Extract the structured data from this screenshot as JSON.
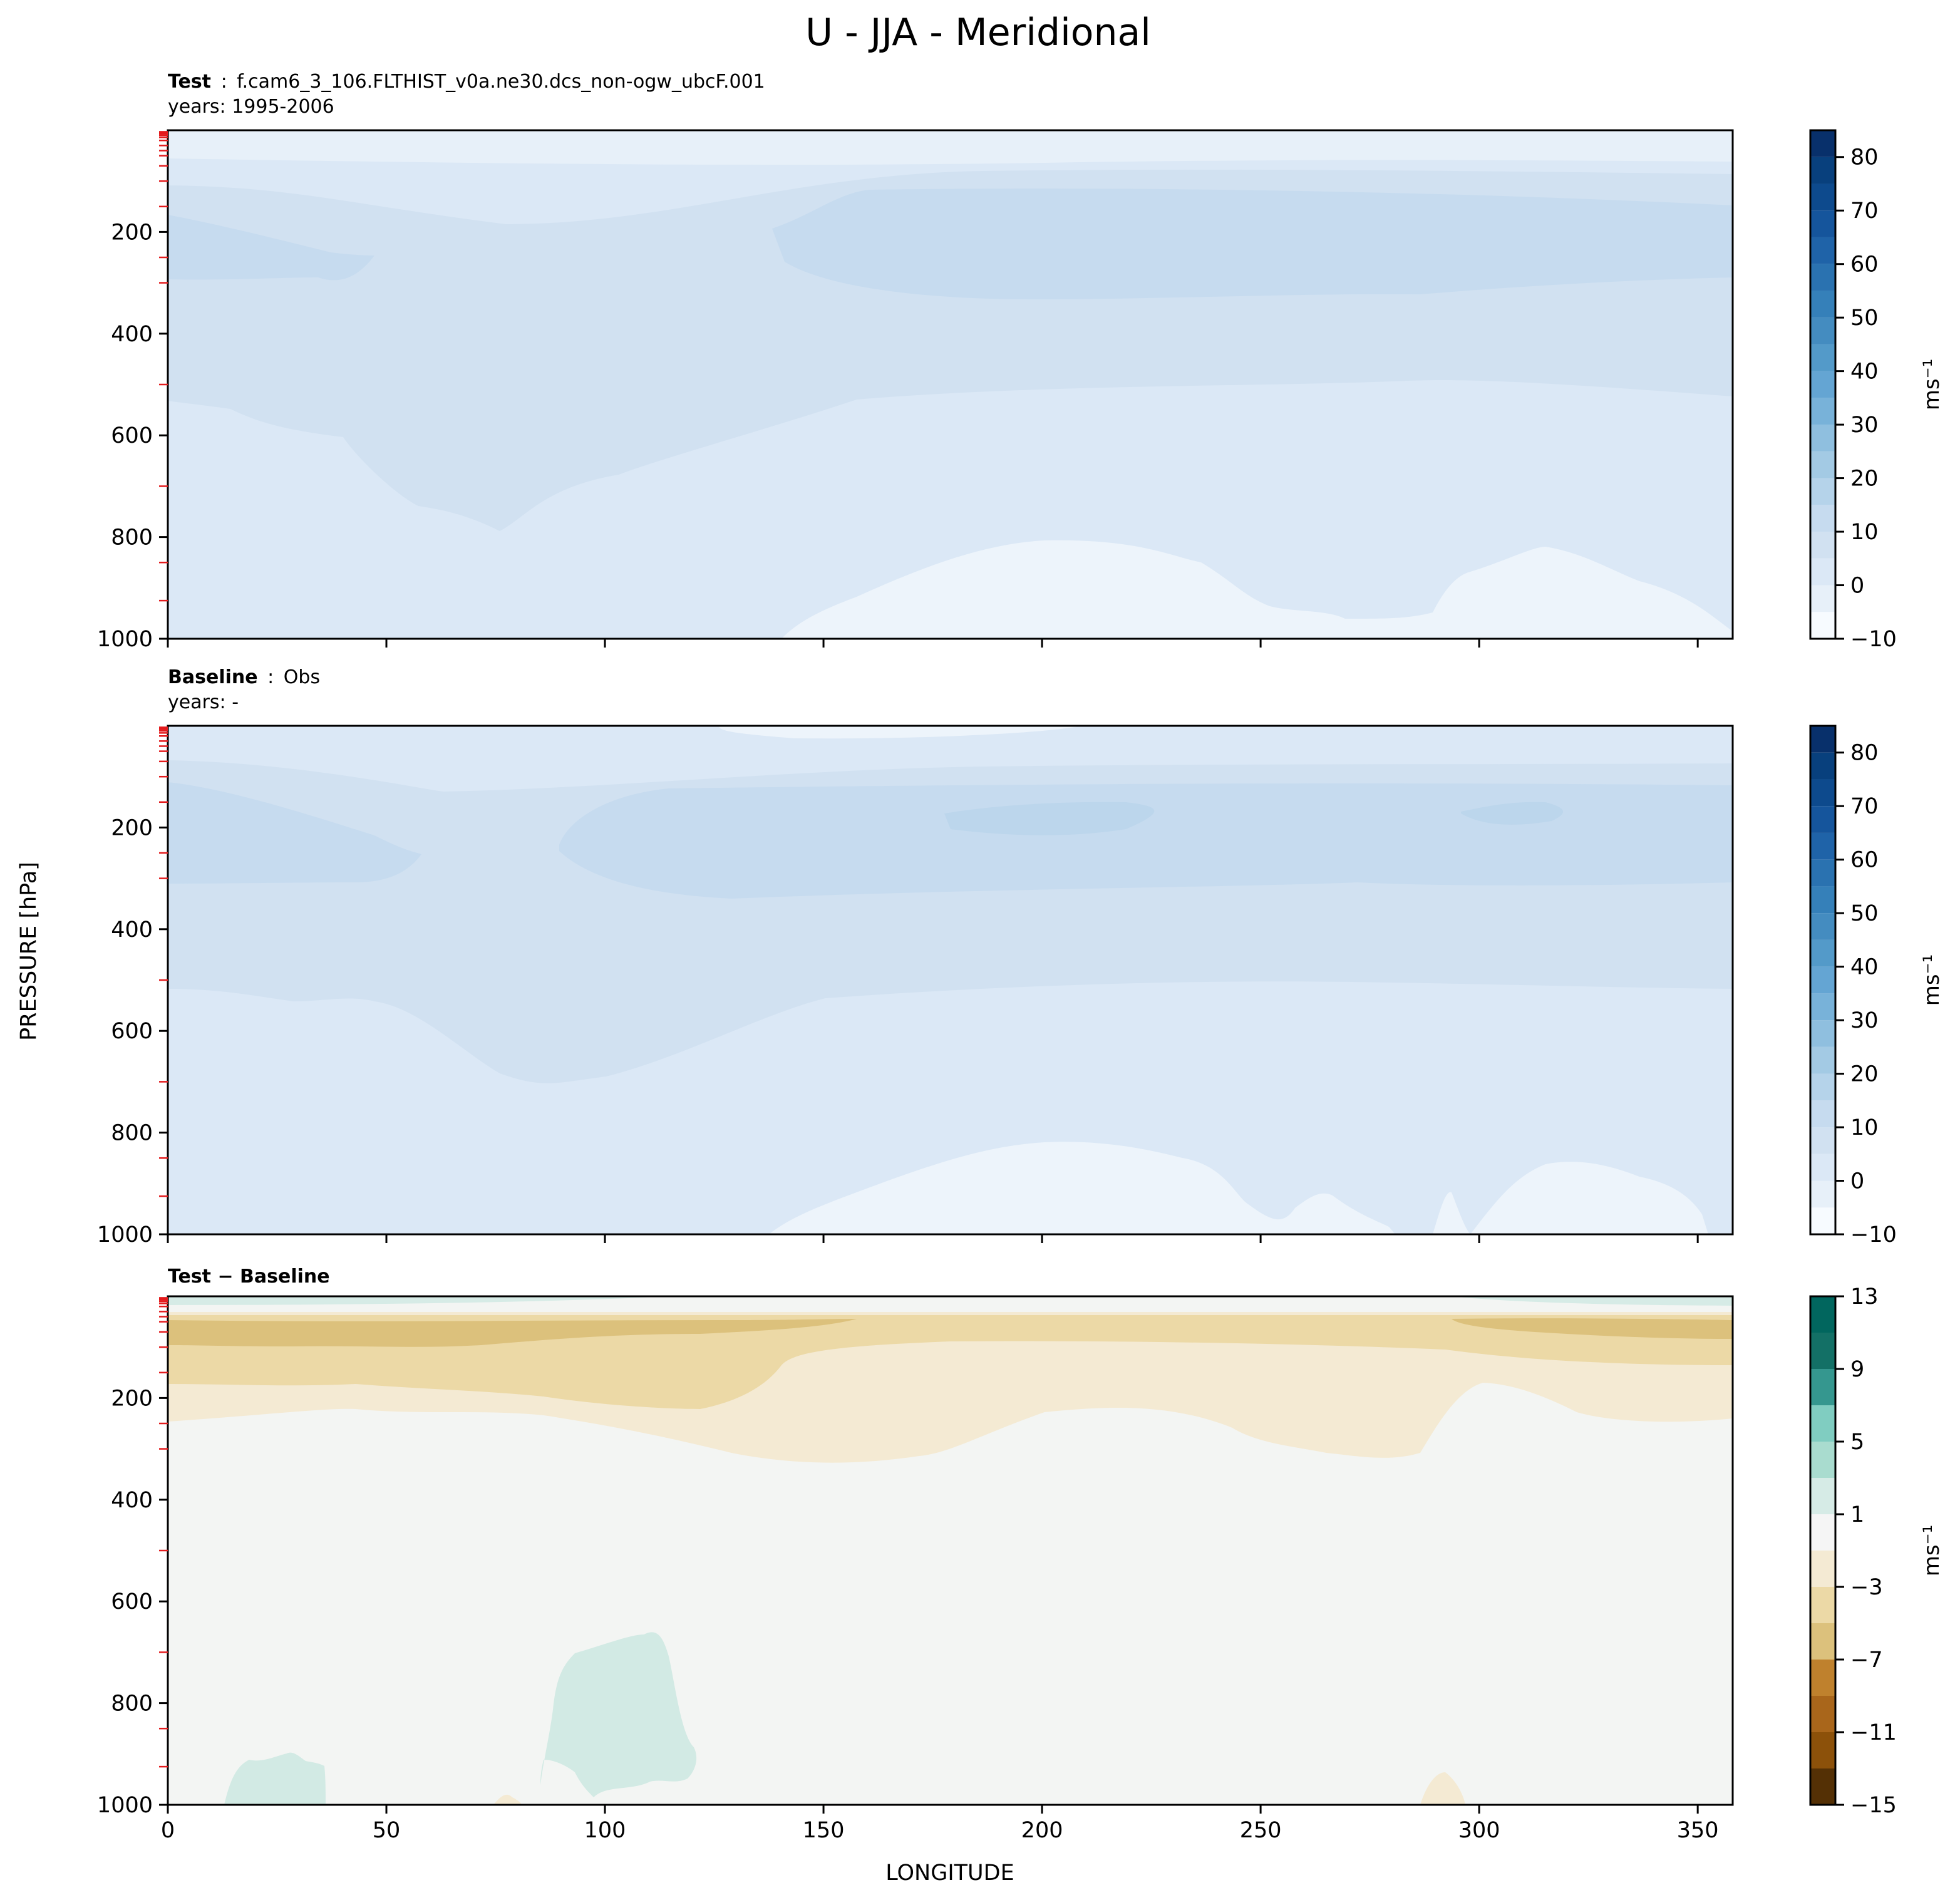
{
  "figure_title": "U - JJA - Meridional",
  "shared_ylabel": "PRESSURE [hPa]",
  "shared_xlabel": "LONGITUDE",
  "chart_data": [
    {
      "type": "filled-contour",
      "panel": "test",
      "title_bold": "Test",
      "title_sep": ":",
      "title_case": "f.cam6_3_106.FLTHIST_v0a.ne30.dcs_non-ogw_ubcF.001",
      "subtitle": "years: 1995-2006",
      "xlim": [
        0,
        358
      ],
      "ylim": [
        1000,
        1
      ],
      "x_ticks": [
        0,
        50,
        100,
        150,
        200,
        250,
        300,
        350
      ],
      "y_ticks": [
        200,
        400,
        600,
        800,
        1000
      ],
      "colorbar": {
        "label": "ms⁻¹",
        "ticks": [
          "−10",
          "0",
          "10",
          "20",
          "30",
          "40",
          "50",
          "60",
          "70",
          "80"
        ],
        "levels": [
          -10,
          -5,
          0,
          5,
          10,
          15,
          20,
          25,
          30,
          35,
          40,
          45,
          50,
          55,
          60,
          65,
          70,
          75,
          80,
          85
        ],
        "colormap": "Blues"
      },
      "regions": [
        {
          "range": "0 to 5",
          "where": "near surface 130-358E, 800-1000 hPa"
        },
        {
          "range": "5 to 10",
          "where": "lower and middle troposphere"
        },
        {
          "range": "10 to 15",
          "where": "upper troposphere 100-550 hPa"
        },
        {
          "range": "15 to 20",
          "where": "jet core ~200-300 hPa, 0-45E and 140-358E"
        }
      ]
    },
    {
      "type": "filled-contour",
      "panel": "baseline",
      "title_bold": "Baseline",
      "title_sep": ":",
      "title_case": "Obs",
      "subtitle": "years: -",
      "xlim": [
        0,
        358
      ],
      "ylim": [
        1000,
        1
      ],
      "x_ticks": [
        0,
        50,
        100,
        150,
        200,
        250,
        300,
        350
      ],
      "y_ticks": [
        200,
        400,
        600,
        800,
        1000
      ],
      "colorbar": {
        "label": "ms⁻¹",
        "ticks": [
          "−10",
          "0",
          "10",
          "20",
          "30",
          "40",
          "50",
          "60",
          "70",
          "80"
        ],
        "levels": [
          -10,
          -5,
          0,
          5,
          10,
          15,
          20,
          25,
          30,
          35,
          40,
          45,
          50,
          55,
          60,
          65,
          70,
          75,
          80,
          85
        ],
        "colormap": "Blues"
      },
      "regions": [
        {
          "range": "0 to 5",
          "where": "near surface 140-340E"
        },
        {
          "range": "5 to 10",
          "where": "lower and middle troposphere"
        },
        {
          "range": "10 to 15",
          "where": "upper troposphere 100-500 hPa"
        },
        {
          "range": "15 to 20",
          "where": "jet core ~150-300 hPa"
        },
        {
          "range": "20 to 25",
          "where": "small maxima near 200E and 310E at ~200 hPa"
        }
      ]
    },
    {
      "type": "filled-contour",
      "panel": "difference",
      "title_bold": "Test − Baseline",
      "xlim": [
        0,
        358
      ],
      "ylim": [
        1000,
        1
      ],
      "x_ticks": [
        0,
        50,
        100,
        150,
        200,
        250,
        300,
        350
      ],
      "y_ticks": [
        200,
        400,
        600,
        800,
        1000
      ],
      "colorbar": {
        "label": "ms⁻¹",
        "ticks": [
          "−15",
          "−11",
          "−7",
          "−3",
          "1",
          "5",
          "9",
          "13"
        ],
        "levels": [
          -15,
          -13,
          -11,
          -9,
          -7,
          -5,
          -3,
          -1,
          1,
          3,
          5,
          7,
          9,
          11,
          13
        ],
        "colormap": "BrBG"
      },
      "regions": [
        {
          "range": "-5 to -3",
          "where": "~50-100 hPa band, strongest 0-130E and 290-358E"
        },
        {
          "range": "-3 to -1",
          "where": "100-250 hPa, extends to ~330 hPa near 150E and 270E"
        },
        {
          "range": "-1 to 1",
          "where": "most of the troposphere"
        },
        {
          "range": "1 to 3",
          "where": "isolated patches near 80-105E (650-850 hPa) and 15-35E (near surface)"
        }
      ]
    }
  ]
}
